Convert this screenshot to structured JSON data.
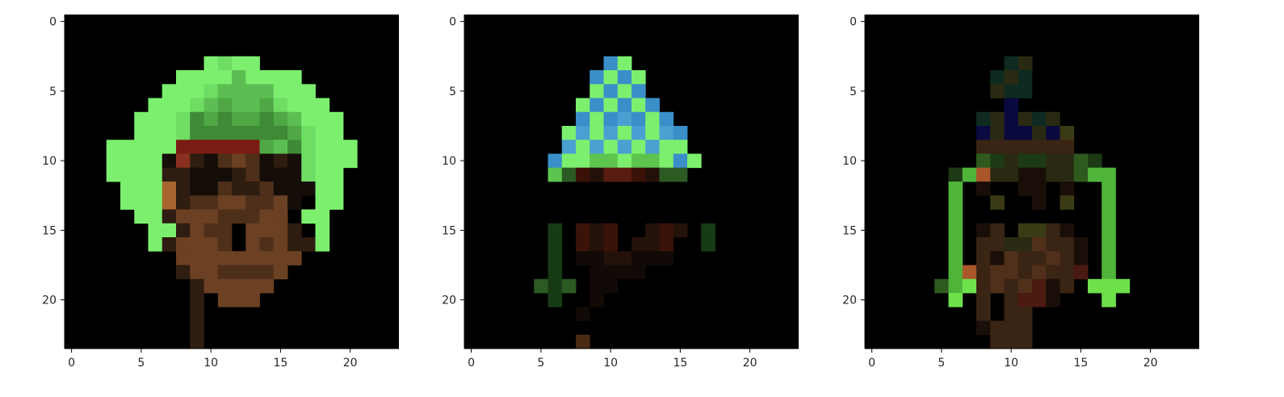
{
  "chart_data": [
    {
      "type": "heatmap",
      "title": "",
      "xlabel": "",
      "ylabel": "",
      "grid": false,
      "xlim": [
        -0.5,
        23.5
      ],
      "ylim": [
        23.5,
        -0.5
      ],
      "x_ticks": [
        0,
        5,
        10,
        15,
        20
      ],
      "y_ticks": [
        0,
        5,
        10,
        15,
        20
      ],
      "x_tick_labels": [
        "0",
        "5",
        "10",
        "15",
        "20"
      ],
      "y_tick_labels": [
        "0",
        "5",
        "10",
        "15",
        "20"
      ],
      "background": "#000000",
      "palette": {
        "G": "#7cf06e",
        "g": "#6fdd64",
        "D": "#5cbe52",
        "d": "#4fa845",
        "K": "#3f8a36",
        "R": "#7a1c14",
        "r": "#8a3020",
        "B": "#6b4023",
        "b": "#4e2f1a",
        "n": "#2e1d10",
        "k": "#140d08",
        "O": "#a8662e"
      },
      "pixels": [
        "........................",
        "........................",
        "........................",
        "..........GgGG..........",
        "........GGGGDGGGG.......",
        ".......GGGgDDDDGGG......",
        "......GGGgDdDDdgGGG.....",
        ".....GGGgKdKddKdDGGG....",
        ".....GGGgKKKKKKKdgGG....",
        "...GGGGGRRRRRRdDKgGGG...",
        "...GGGGkrnkbBbknkgGGG...",
        "...GGGGnnkkknbkkkgGG....",
        "....GGGOnkkbnnbkkkGG....",
        "....GGGOnbbBBbbBk.GG....",
        ".....GGnBBBbbbBB.GG.....",
        "......GGnBbb.BBBn.G.....",
        "......GnBBBb.BbBnnG.....",
        "........BBBBBBBBB.......",
        "........nBBbbbbB........",
        ".........nBBBBB.........",
        ".........n.BBB..........",
        ".........n..............",
        ".........n..............",
        ".........n.............."
      ]
    },
    {
      "type": "heatmap",
      "title": "",
      "xlabel": "",
      "ylabel": "",
      "grid": false,
      "xlim": [
        -0.5,
        23.5
      ],
      "ylim": [
        23.5,
        -0.5
      ],
      "x_ticks": [
        0,
        5,
        10,
        15,
        20
      ],
      "y_ticks": [
        0,
        5,
        10,
        15,
        20
      ],
      "x_tick_labels": [
        "0",
        "5",
        "10",
        "15",
        "20"
      ],
      "y_tick_labels": [
        "0",
        "5",
        "10",
        "15",
        "20"
      ],
      "background": "#000000",
      "palette": {
        "G": "#7cf06e",
        "g": "#5cc44f",
        "L": "#3a8fc8",
        "l": "#4aa0d0",
        "D": "#2c5a23",
        "d": "#173b14",
        "R": "#5a1c10",
        "r": "#3a1208",
        "b": "#24120a",
        "k": "#120a06",
        "o": "#4a2a12"
      },
      "pixels": [
        "........................",
        "........................",
        "........................",
        "..........LG............",
        ".........LGLG...........",
        ".........GLGL...........",
        "........GLGLGL..........",
        "........LGLlLGL.........",
        ".......GlGlGlGlL........",
        ".......lGlGlGlGG........",
        "......LGGggGggGLG.......",
        "......gDrbRRrbDD........",
        "........................",
        "........................",
        "........................",
        "......d.rbr..brb.d......",
        "......d.rbr.bbr..d......",
        "......d.kkbbkkk.........",
        "......d..kkkk...........",
        ".....DdD.kk.............",
        "......d..k..............",
        "........k...............",
        "........................",
        "........o..............."
      ]
    },
    {
      "type": "heatmap",
      "title": "",
      "xlabel": "",
      "ylabel": "",
      "grid": false,
      "xlim": [
        -0.5,
        23.5
      ],
      "ylim": [
        23.5,
        -0.5
      ],
      "x_ticks": [
        0,
        5,
        10,
        15,
        20
      ],
      "y_ticks": [
        0,
        5,
        10,
        15,
        20
      ],
      "x_tick_labels": [
        "0",
        "5",
        "10",
        "15",
        "20"
      ],
      "y_tick_labels": [
        "0",
        "5",
        "10",
        "15",
        "20"
      ],
      "background": "#000000",
      "palette": {
        "G": "#6ee04a",
        "g": "#4fb43a",
        "D": "#2f5a1e",
        "d": "#1c3a14",
        "N": "#0a0a40",
        "n": "#0f2a20",
        "y": "#2a2a12",
        "Y": "#3a3a14",
        "b": "#3a2414",
        "B": "#50301a",
        "k": "#1a0f08",
        "O": "#a8562a",
        "R": "#4a1a10"
      },
      "pixels": [
        "........................",
        "........................",
        "........................",
        "..........ny............",
        ".........nyn............",
        ".........ynn............",
        "..........N.............",
        "........nyNyny..........",
        "........NyNNyNY.........",
        "........bbbbbbb.........",
        "........DdyddyyDd.......",
        "......dgOyykkyyDgg......",
        "......g.k..kk.k..g......",
        "......g..Y..k.Y..g......",
        "......g..........g......",
        "......g.kb.YYbk..g......",
        "......g.bbyyBbbk.g......",
        "......g.bkBbbBbk.g......",
        "......gObBBbBbbR.g......",
        ".....DgGbBbBRkb.GGG.....",
        "......G.b.bRRk...G......",
        "........b.bb............",
        "........kbbb............",
        ".........bbb............"
      ]
    }
  ]
}
